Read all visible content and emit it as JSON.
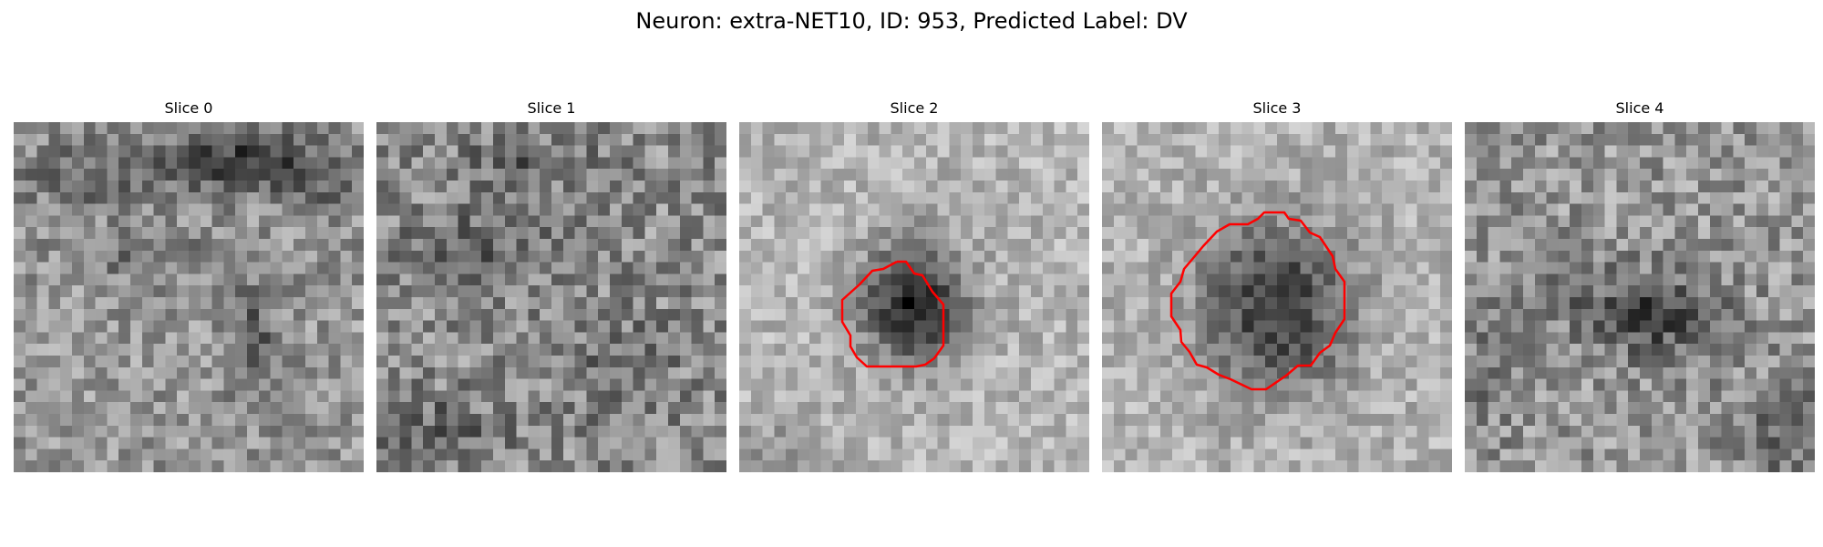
{
  "figure": {
    "title": "Neuron: extra-NET10, ID: 953, Predicted Label: DV"
  },
  "slices": [
    {
      "label": "Slice 0",
      "has_contour": false
    },
    {
      "label": "Slice 1",
      "has_contour": false
    },
    {
      "label": "Slice 2",
      "has_contour": true
    },
    {
      "label": "Slice 3",
      "has_contour": true
    },
    {
      "label": "Slice 4",
      "has_contour": false
    }
  ],
  "colors": {
    "contour": "#ff0000",
    "background": "#ffffff"
  },
  "image": {
    "colormap": "gray"
  }
}
